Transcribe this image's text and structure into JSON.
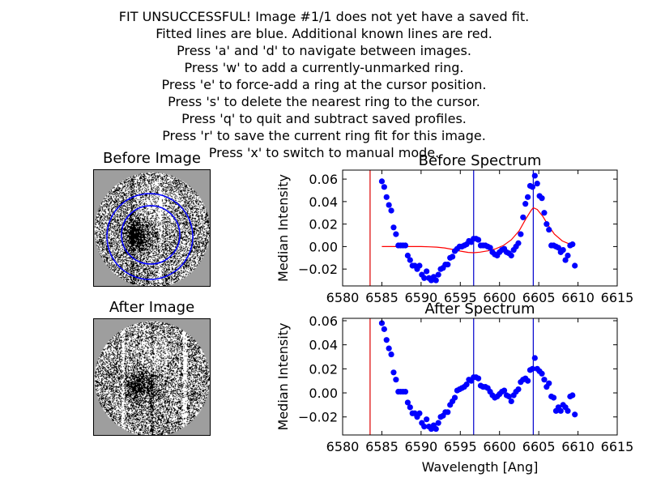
{
  "instructions": [
    "FIT UNSUCCESSFUL! Image #1/1 does not yet have a saved fit.",
    "Fitted lines are blue. Additional known lines are red.",
    "Press 'a' and 'd' to navigate between images.",
    "Press 'w' to add a currently-unmarked ring.",
    "Press 'e' to force-add a ring at the cursor position.",
    "Press 's' to delete the nearest ring to the cursor.",
    "Press 'q' to quit and subtract saved profiles.",
    "Press 'r' to save the current ring fit for this image.",
    "Press 'x' to switch to manual mode."
  ],
  "before_image": {
    "title": "Before Image"
  },
  "after_image": {
    "title": "After Image"
  },
  "colors": {
    "points": "#0000ff",
    "fit_curve": "#ff0000",
    "fitted_line": "#0000cc",
    "known_line": "#dd0000",
    "image_bg": "#9e9e9e"
  },
  "chart_data": [
    {
      "type": "scatter",
      "title": "Before Spectrum",
      "xlabel": "",
      "ylabel": "Median Intensity",
      "xlim": [
        6580,
        6615
      ],
      "ylim": [
        -0.035,
        0.068
      ],
      "xticks": [
        6580,
        6585,
        6590,
        6595,
        6600,
        6605,
        6610,
        6615
      ],
      "yticks": [
        -0.02,
        0.0,
        0.02,
        0.04,
        0.06
      ],
      "vlines": [
        {
          "x": 6583.5,
          "color": "red"
        },
        {
          "x": 6596.7,
          "color": "blue"
        },
        {
          "x": 6604.3,
          "color": "blue"
        }
      ],
      "points": [
        [
          6585.0,
          0.058
        ],
        [
          6585.3,
          0.053
        ],
        [
          6585.6,
          0.044
        ],
        [
          6585.9,
          0.037
        ],
        [
          6586.2,
          0.032
        ],
        [
          6586.5,
          0.017
        ],
        [
          6586.8,
          0.011
        ],
        [
          6587.1,
          0.001
        ],
        [
          6587.4,
          0.001
        ],
        [
          6587.7,
          0.001
        ],
        [
          6588.0,
          0.001
        ],
        [
          6588.3,
          -0.008
        ],
        [
          6588.6,
          -0.012
        ],
        [
          6588.9,
          -0.017
        ],
        [
          6589.2,
          -0.017
        ],
        [
          6589.5,
          -0.02
        ],
        [
          6589.8,
          -0.017
        ],
        [
          6590.1,
          -0.025
        ],
        [
          6590.4,
          -0.028
        ],
        [
          6590.7,
          -0.022
        ],
        [
          6591.0,
          -0.028
        ],
        [
          6591.3,
          -0.03
        ],
        [
          6591.6,
          -0.027
        ],
        [
          6591.9,
          -0.03
        ],
        [
          6592.2,
          -0.025
        ],
        [
          6592.5,
          -0.02
        ],
        [
          6592.8,
          -0.019
        ],
        [
          6593.1,
          -0.016
        ],
        [
          6593.4,
          -0.016
        ],
        [
          6593.7,
          -0.01
        ],
        [
          6594.0,
          -0.009
        ],
        [
          6594.3,
          -0.004
        ],
        [
          6594.6,
          -0.002
        ],
        [
          6594.9,
          0.0
        ],
        [
          6595.2,
          0.0
        ],
        [
          6595.5,
          0.001
        ],
        [
          6595.8,
          0.002
        ],
        [
          6596.1,
          0.005
        ],
        [
          6596.4,
          0.004
        ],
        [
          6596.7,
          0.007
        ],
        [
          6597.0,
          0.007
        ],
        [
          6597.3,
          0.006
        ],
        [
          6597.6,
          0.001
        ],
        [
          6597.9,
          0.001
        ],
        [
          6598.2,
          0.001
        ],
        [
          6598.5,
          0.0
        ],
        [
          6598.8,
          -0.001
        ],
        [
          6599.1,
          -0.005
        ],
        [
          6599.4,
          -0.007
        ],
        [
          6599.7,
          -0.008
        ],
        [
          6600.0,
          -0.005
        ],
        [
          6600.3,
          -0.003
        ],
        [
          6600.6,
          -0.002
        ],
        [
          6600.9,
          -0.005
        ],
        [
          6601.2,
          -0.006
        ],
        [
          6601.5,
          -0.008
        ],
        [
          6601.8,
          -0.003
        ],
        [
          6602.1,
          0.0
        ],
        [
          6602.4,
          0.003
        ],
        [
          6602.7,
          0.011
        ],
        [
          6603.0,
          0.026
        ],
        [
          6603.3,
          0.038
        ],
        [
          6603.6,
          0.044
        ],
        [
          6603.9,
          0.054
        ],
        [
          6604.2,
          0.053
        ],
        [
          6604.5,
          0.063
        ],
        [
          6604.8,
          0.056
        ],
        [
          6605.1,
          0.045
        ],
        [
          6605.4,
          0.043
        ],
        [
          6605.7,
          0.03
        ],
        [
          6606.0,
          0.02
        ],
        [
          6606.3,
          0.015
        ],
        [
          6606.6,
          0.001
        ],
        [
          6606.9,
          0.001
        ],
        [
          6607.2,
          0.0
        ],
        [
          6607.5,
          -0.001
        ],
        [
          6607.8,
          -0.005
        ],
        [
          6608.1,
          -0.003
        ],
        [
          6608.4,
          -0.012
        ],
        [
          6608.7,
          -0.008
        ],
        [
          6609.0,
          0.001
        ],
        [
          6609.3,
          0.002
        ],
        [
          6609.6,
          -0.017
        ]
      ],
      "fit_curve": [
        [
          6585.0,
          0.0
        ],
        [
          6586.0,
          0.0
        ],
        [
          6587.0,
          0.0
        ],
        [
          6588.0,
          0.0
        ],
        [
          6589.0,
          0.0
        ],
        [
          6590.0,
          0.0
        ],
        [
          6591.0,
          -0.0002
        ],
        [
          6592.0,
          -0.0005
        ],
        [
          6593.0,
          -0.0012
        ],
        [
          6594.0,
          -0.0025
        ],
        [
          6595.0,
          -0.004
        ],
        [
          6596.0,
          -0.0052
        ],
        [
          6596.7,
          -0.0055
        ],
        [
          6597.5,
          -0.005
        ],
        [
          6598.5,
          -0.0038
        ],
        [
          6599.5,
          -0.002
        ],
        [
          6600.5,
          0.001
        ],
        [
          6601.5,
          0.006
        ],
        [
          6602.5,
          0.014
        ],
        [
          6603.3,
          0.024
        ],
        [
          6604.0,
          0.032
        ],
        [
          6604.3,
          0.0345
        ],
        [
          6604.8,
          0.033
        ],
        [
          6605.5,
          0.027
        ],
        [
          6606.2,
          0.019
        ],
        [
          6607.0,
          0.011
        ],
        [
          6608.0,
          0.005
        ],
        [
          6609.0,
          0.002
        ],
        [
          6609.6,
          0.001
        ]
      ]
    },
    {
      "type": "scatter",
      "title": "After Spectrum",
      "xlabel": "Wavelength [Ang]",
      "ylabel": "Median Intensity",
      "xlim": [
        6580,
        6615
      ],
      "ylim": [
        -0.035,
        0.062
      ],
      "xticks": [
        6580,
        6585,
        6590,
        6595,
        6600,
        6605,
        6610,
        6615
      ],
      "yticks": [
        -0.02,
        0.0,
        0.02,
        0.04,
        0.06
      ],
      "vlines": [
        {
          "x": 6583.5,
          "color": "red"
        },
        {
          "x": 6596.7,
          "color": "blue"
        },
        {
          "x": 6604.3,
          "color": "blue"
        }
      ],
      "points": [
        [
          6585.0,
          0.058
        ],
        [
          6585.3,
          0.053
        ],
        [
          6585.6,
          0.044
        ],
        [
          6585.9,
          0.037
        ],
        [
          6586.2,
          0.032
        ],
        [
          6586.5,
          0.017
        ],
        [
          6586.8,
          0.011
        ],
        [
          6587.1,
          0.001
        ],
        [
          6587.4,
          0.001
        ],
        [
          6587.7,
          0.001
        ],
        [
          6588.0,
          0.001
        ],
        [
          6588.3,
          -0.008
        ],
        [
          6588.6,
          -0.012
        ],
        [
          6588.9,
          -0.017
        ],
        [
          6589.2,
          -0.017
        ],
        [
          6589.5,
          -0.02
        ],
        [
          6589.8,
          -0.017
        ],
        [
          6590.1,
          -0.025
        ],
        [
          6590.4,
          -0.028
        ],
        [
          6590.7,
          -0.022
        ],
        [
          6591.0,
          -0.028
        ],
        [
          6591.3,
          -0.03
        ],
        [
          6591.6,
          -0.027
        ],
        [
          6591.9,
          -0.03
        ],
        [
          6592.2,
          -0.025
        ],
        [
          6592.5,
          -0.02
        ],
        [
          6592.8,
          -0.019
        ],
        [
          6593.1,
          -0.016
        ],
        [
          6593.4,
          -0.016
        ],
        [
          6593.7,
          -0.01
        ],
        [
          6594.0,
          -0.007
        ],
        [
          6594.3,
          -0.004
        ],
        [
          6594.6,
          0.002
        ],
        [
          6594.9,
          0.003
        ],
        [
          6595.2,
          0.004
        ],
        [
          6595.5,
          0.005
        ],
        [
          6595.8,
          0.007
        ],
        [
          6596.1,
          0.011
        ],
        [
          6596.4,
          0.01
        ],
        [
          6596.7,
          0.013
        ],
        [
          6597.0,
          0.013
        ],
        [
          6597.3,
          0.012
        ],
        [
          6597.6,
          0.006
        ],
        [
          6597.9,
          0.005
        ],
        [
          6598.2,
          0.005
        ],
        [
          6598.5,
          0.004
        ],
        [
          6598.8,
          0.001
        ],
        [
          6599.1,
          -0.002
        ],
        [
          6599.4,
          -0.004
        ],
        [
          6599.7,
          -0.003
        ],
        [
          6600.0,
          -0.001
        ],
        [
          6600.3,
          0.001
        ],
        [
          6600.6,
          0.002
        ],
        [
          6600.9,
          -0.002
        ],
        [
          6601.2,
          -0.003
        ],
        [
          6601.5,
          -0.007
        ],
        [
          6601.8,
          -0.002
        ],
        [
          6602.1,
          0.001
        ],
        [
          6602.4,
          0.003
        ],
        [
          6602.7,
          0.009
        ],
        [
          6603.0,
          0.011
        ],
        [
          6603.3,
          0.012
        ],
        [
          6603.6,
          0.01
        ],
        [
          6603.9,
          0.019
        ],
        [
          6604.2,
          0.02
        ],
        [
          6604.5,
          0.029
        ],
        [
          6604.8,
          0.02
        ],
        [
          6605.1,
          0.018
        ],
        [
          6605.4,
          0.016
        ],
        [
          6605.7,
          0.011
        ],
        [
          6606.0,
          0.005
        ],
        [
          6606.3,
          0.008
        ],
        [
          6606.6,
          -0.003
        ],
        [
          6606.9,
          -0.004
        ],
        [
          6607.2,
          -0.015
        ],
        [
          6607.5,
          -0.012
        ],
        [
          6607.8,
          -0.015
        ],
        [
          6608.1,
          -0.01
        ],
        [
          6608.4,
          -0.012
        ],
        [
          6608.7,
          -0.015
        ],
        [
          6609.0,
          -0.003
        ],
        [
          6609.3,
          -0.002
        ],
        [
          6609.6,
          -0.018
        ]
      ]
    }
  ]
}
